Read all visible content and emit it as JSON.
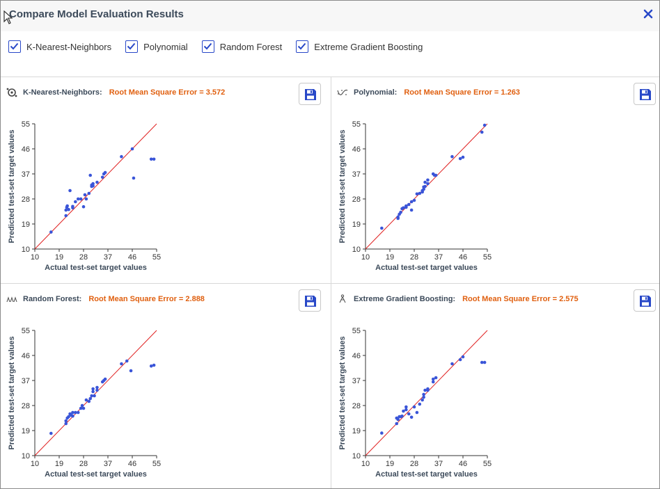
{
  "header": {
    "title": "Compare Model Evaluation Results"
  },
  "checkboxes": [
    {
      "label": "K-Nearest-Neighbors",
      "checked": true
    },
    {
      "label": "Polynomial",
      "checked": true
    },
    {
      "label": "Random Forest",
      "checked": true
    },
    {
      "label": "Extreme Gradient Boosting",
      "checked": true
    }
  ],
  "colors": {
    "accent": "#2848c8",
    "rmse": "#e06010",
    "point": "#3a55d8",
    "fitline": "#e02020"
  },
  "chart_data": [
    {
      "type": "scatter",
      "model": "K-Nearest-Neighbors:",
      "icon": "knn-icon",
      "rmse": "Root Mean Square Error = 3.572",
      "xlabel": "Actual test-set target values",
      "ylabel": "Predicted test-set target values",
      "xlim": [
        10,
        55
      ],
      "ylim": [
        10,
        55
      ],
      "xticks": [
        "10",
        "19",
        "28",
        "37",
        "46",
        "55"
      ],
      "yticks": [
        "10",
        "19",
        "28",
        "37",
        "46",
        "55"
      ],
      "x": [
        16,
        21.5,
        21.5,
        21.8,
        22,
        22.5,
        23,
        24,
        24,
        25,
        26,
        27,
        28,
        28.5,
        29,
        30,
        30.5,
        31,
        31,
        31.5,
        31.5,
        33,
        35,
        35.5,
        36,
        42,
        46,
        46.5,
        53,
        54
      ],
      "y": [
        16.1,
        22,
        24,
        25,
        25.5,
        24.2,
        31,
        25.3,
        24.8,
        27,
        28,
        28,
        25.2,
        29.5,
        28,
        30,
        36.5,
        33,
        32.5,
        32.7,
        33.5,
        34,
        35.8,
        37,
        37.5,
        43.2,
        46,
        35.5,
        42.3,
        42.3
      ]
    },
    {
      "type": "scatter",
      "model": "Polynomial:",
      "icon": "polynomial-icon",
      "rmse": "Root Mean Square Error = 1.263",
      "xlabel": "Actual test-set target values",
      "ylabel": "Predicted test-set target values",
      "xlim": [
        10,
        55
      ],
      "ylim": [
        10,
        55
      ],
      "xticks": [
        "10",
        "19",
        "28",
        "37",
        "46",
        "55"
      ],
      "yticks": [
        "10",
        "19",
        "28",
        "37",
        "46",
        "55"
      ],
      "x": [
        16,
        22,
        22,
        22.5,
        23,
        23.5,
        24,
        25,
        25,
        26,
        27,
        27,
        28,
        29,
        30,
        31,
        31,
        31.5,
        31.5,
        32,
        32,
        33,
        33,
        35,
        35.5,
        36,
        42,
        45,
        46,
        53,
        54
      ],
      "y": [
        17.5,
        21,
        21.5,
        22.5,
        23.2,
        24.5,
        24.8,
        25,
        25.5,
        26,
        24,
        27,
        27.5,
        29.8,
        30,
        30.5,
        31,
        31.5,
        32.3,
        32.5,
        34,
        33.5,
        34.8,
        37,
        36.5,
        36.5,
        43.2,
        42.5,
        43,
        52,
        54.5
      ]
    },
    {
      "type": "scatter",
      "model": "Random Forest:",
      "icon": "random-forest-icon",
      "rmse": "Root Mean Square Error = 2.888",
      "xlabel": "Actual test-set target values",
      "ylabel": "Predicted test-set target values",
      "xlim": [
        10,
        55
      ],
      "ylim": [
        10,
        55
      ],
      "xticks": [
        "10",
        "19",
        "28",
        "37",
        "46",
        "55"
      ],
      "yticks": [
        "10",
        "19",
        "28",
        "37",
        "46",
        "55"
      ],
      "x": [
        16,
        21.5,
        21.5,
        22,
        22.5,
        23,
        23.5,
        24,
        24,
        25,
        26,
        27,
        27.5,
        28,
        29,
        30,
        30.5,
        31,
        31.5,
        31.5,
        32,
        33,
        33,
        35,
        35.5,
        36,
        42,
        44,
        45.5,
        53,
        54
      ],
      "y": [
        18,
        21.5,
        22.5,
        23.5,
        24,
        25,
        24.5,
        25.5,
        24.2,
        25.5,
        25.5,
        27,
        28,
        27,
        30,
        29.5,
        30.5,
        31.5,
        33,
        34,
        31.5,
        33.5,
        34.5,
        36.5,
        37,
        37.5,
        43,
        44,
        40.5,
        42.2,
        42.5
      ]
    },
    {
      "type": "scatter",
      "model": "Extreme Gradient Boosting:",
      "icon": "xgboost-icon",
      "rmse": "Root Mean Square Error = 2.575",
      "xlabel": "Actual test-set target values",
      "ylabel": "Predicted test-set target values",
      "xlim": [
        10,
        55
      ],
      "ylim": [
        10,
        55
      ],
      "xticks": [
        "10",
        "19",
        "28",
        "37",
        "46",
        "55"
      ],
      "yticks": [
        "10",
        "19",
        "28",
        "37",
        "46",
        "55"
      ],
      "x": [
        16,
        21.5,
        21.5,
        22,
        22.5,
        23,
        23.5,
        24,
        25,
        25,
        26,
        27,
        28,
        29,
        30,
        31,
        31.5,
        31.5,
        32,
        33,
        33,
        35,
        35,
        36,
        42,
        45,
        46,
        53,
        54
      ],
      "y": [
        18.1,
        21.5,
        23.5,
        23,
        24,
        24,
        24.2,
        26,
        26.5,
        27.5,
        25,
        23.8,
        27.5,
        25.5,
        28.5,
        30,
        31,
        32,
        33.5,
        33.5,
        34,
        36.5,
        37.5,
        38,
        43,
        44.5,
        45.5,
        43.5,
        43.5
      ]
    }
  ]
}
